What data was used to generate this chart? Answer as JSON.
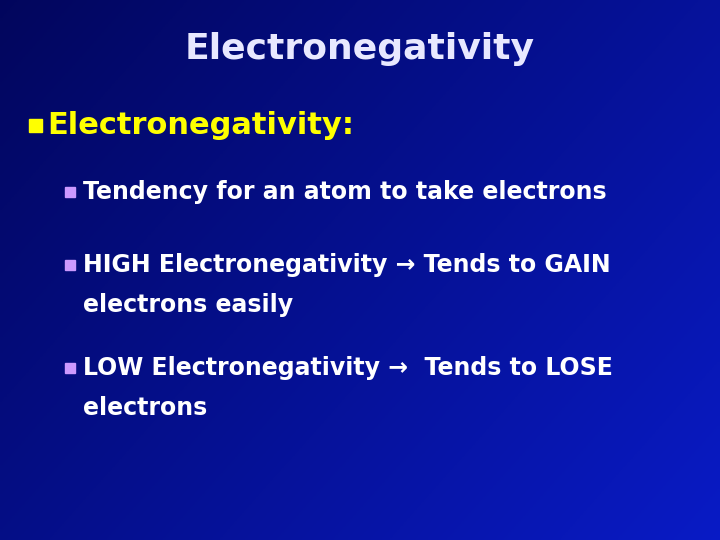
{
  "title": "Electronegativity",
  "title_color": "#E8E8FF",
  "title_fontsize": 26,
  "bullet1_text": "Electronegativity:",
  "bullet1_color": "#FFFF00",
  "bullet1_fontsize": 22,
  "bullet1_bullet_color": "#FFFF00",
  "sub_bullet_color": "#CC99FF",
  "sub1_text": "Tendency for an atom to take electrons",
  "sub1_fontsize": 17,
  "sub2_line1": "HIGH Electronegativity → Tends to GAIN",
  "sub2_line2": "electrons easily",
  "sub2_fontsize": 17,
  "sub3_line1": "LOW Electronegativity →  Tends to LOSE",
  "sub3_line2": "electrons",
  "sub3_fontsize": 17,
  "text_color": "#FFFFFF",
  "figure_width": 7.2,
  "figure_height": 5.4
}
